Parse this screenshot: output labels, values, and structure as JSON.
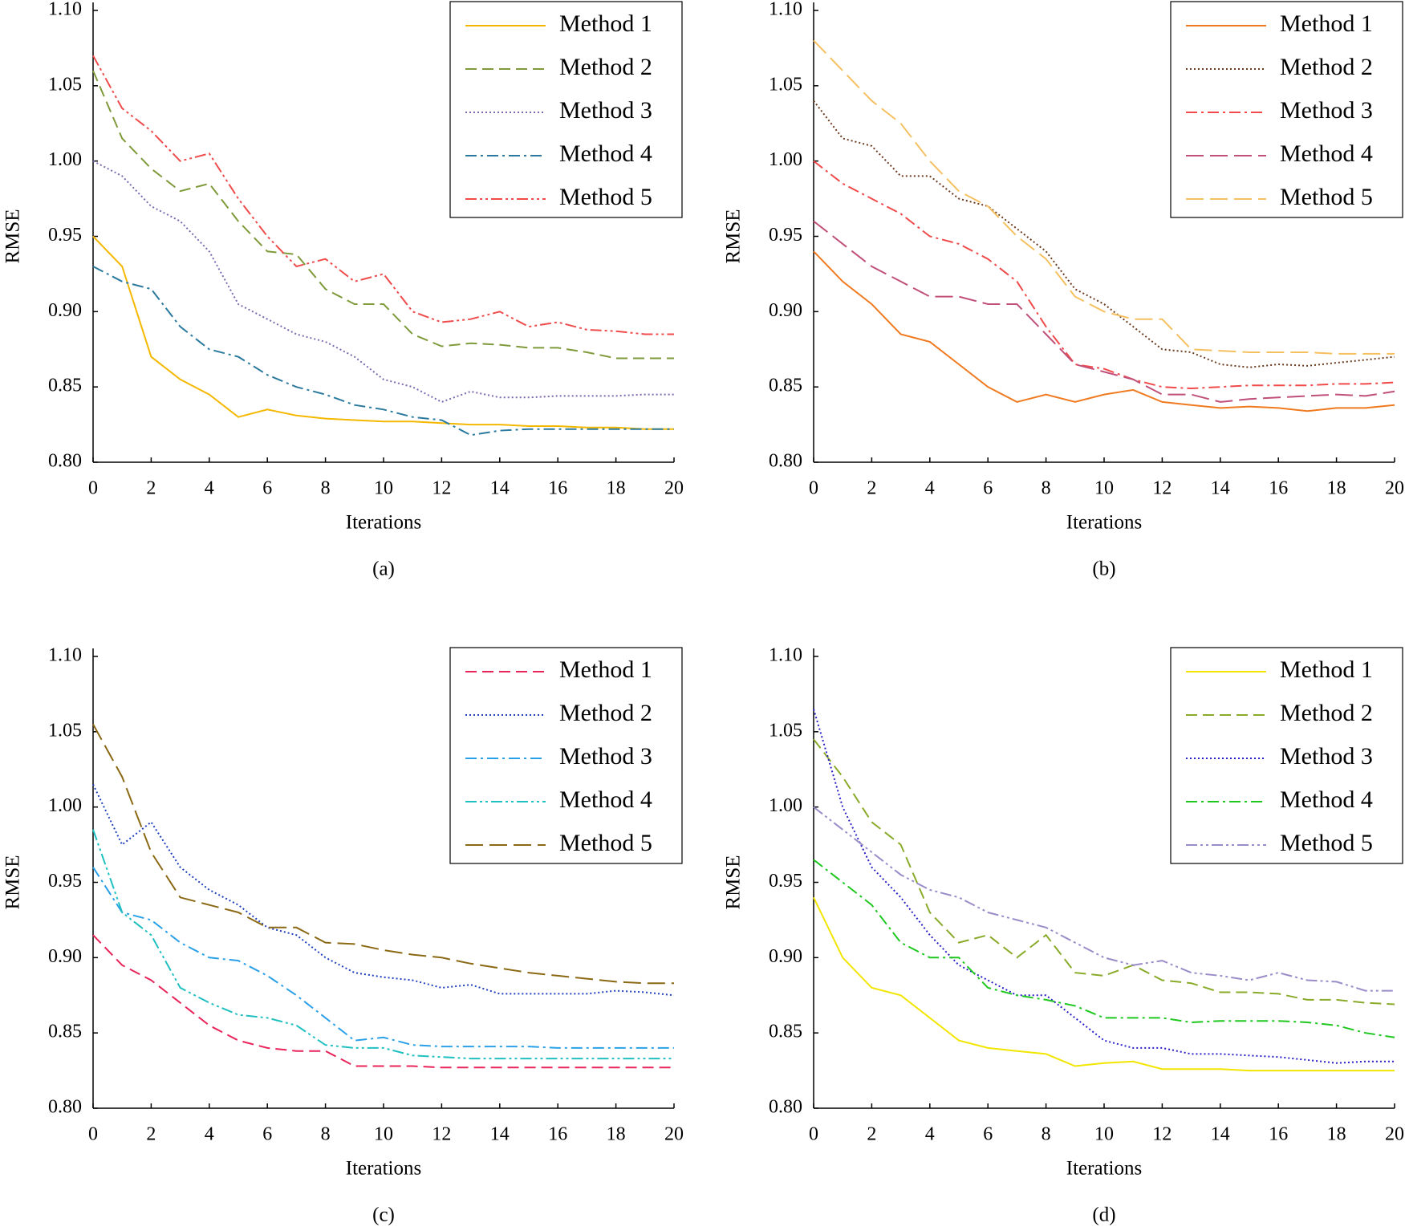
{
  "chart_data": [
    {
      "type": "line",
      "caption": "(a)",
      "xlabel": "Iterations",
      "ylabel": "RMSE",
      "x": [
        0,
        1,
        2,
        3,
        4,
        5,
        6,
        7,
        8,
        9,
        10,
        11,
        12,
        13,
        14,
        15,
        16,
        17,
        18,
        19,
        20
      ],
      "xlim": [
        0,
        20
      ],
      "xticks": [
        0,
        2,
        4,
        6,
        8,
        10,
        12,
        14,
        16,
        18,
        20
      ],
      "ylim": [
        0.8,
        1.1
      ],
      "yticks": [
        {
          "value": 0.8,
          "label": "0.80"
        },
        {
          "value": 0.85,
          "label": "0.85"
        },
        {
          "value": 0.9,
          "label": "0.90"
        },
        {
          "value": 0.95,
          "label": "0.95"
        },
        {
          "value": 1.0,
          "label": "1.00"
        },
        {
          "value": 1.05,
          "label": "1.05"
        },
        {
          "value": 1.1,
          "label": "1.10"
        }
      ],
      "series": [
        {
          "name": "Method 1",
          "color": "#f5b800",
          "dash": "solid",
          "values": [
            0.95,
            0.93,
            0.87,
            0.855,
            0.845,
            0.83,
            0.835,
            0.831,
            0.829,
            0.828,
            0.827,
            0.827,
            0.826,
            0.825,
            0.825,
            0.824,
            0.824,
            0.823,
            0.823,
            0.822,
            0.822
          ]
        },
        {
          "name": "Method 2",
          "color": "#7f9a3a",
          "dash": "dashed",
          "values": [
            1.06,
            1.015,
            0.995,
            0.98,
            0.985,
            0.96,
            0.94,
            0.938,
            0.915,
            0.905,
            0.905,
            0.885,
            0.877,
            0.879,
            0.878,
            0.876,
            0.876,
            0.873,
            0.869,
            0.869,
            0.869
          ]
        },
        {
          "name": "Method 3",
          "color": "#7b68ae",
          "dash": "dotted",
          "values": [
            1.0,
            0.99,
            0.97,
            0.96,
            0.94,
            0.905,
            0.895,
            0.885,
            0.88,
            0.87,
            0.855,
            0.85,
            0.84,
            0.847,
            0.843,
            0.843,
            0.844,
            0.844,
            0.844,
            0.845,
            0.845
          ]
        },
        {
          "name": "Method 4",
          "color": "#2b7a9e",
          "dash": "dashdot",
          "values": [
            0.93,
            0.92,
            0.915,
            0.89,
            0.875,
            0.87,
            0.858,
            0.85,
            0.845,
            0.838,
            0.835,
            0.83,
            0.828,
            0.818,
            0.821,
            0.822,
            0.822,
            0.822,
            0.822,
            0.822,
            0.822
          ]
        },
        {
          "name": "Method 5",
          "color": "#ef4b4b",
          "dash": "dashdotdot",
          "values": [
            1.07,
            1.035,
            1.02,
            1.0,
            1.005,
            0.975,
            0.95,
            0.93,
            0.935,
            0.92,
            0.925,
            0.9,
            0.893,
            0.895,
            0.9,
            0.89,
            0.893,
            0.888,
            0.887,
            0.885,
            0.885
          ]
        }
      ]
    },
    {
      "type": "line",
      "caption": "(b)",
      "xlabel": "Iterations",
      "ylabel": "RMSE",
      "x": [
        0,
        1,
        2,
        3,
        4,
        5,
        6,
        7,
        8,
        9,
        10,
        11,
        12,
        13,
        14,
        15,
        16,
        17,
        18,
        19,
        20
      ],
      "xlim": [
        0,
        20
      ],
      "xticks": [
        0,
        2,
        4,
        6,
        8,
        10,
        12,
        14,
        16,
        18,
        20
      ],
      "ylim": [
        0.8,
        1.1
      ],
      "yticks": [
        {
          "value": 0.8,
          "label": "0.80"
        },
        {
          "value": 0.85,
          "label": "0.85"
        },
        {
          "value": 0.9,
          "label": "0.90"
        },
        {
          "value": 0.95,
          "label": "0.95"
        },
        {
          "value": 1.0,
          "label": "1.00"
        },
        {
          "value": 1.05,
          "label": "1.05"
        },
        {
          "value": 1.1,
          "label": "1.10"
        }
      ],
      "series": [
        {
          "name": "Method 1",
          "color": "#f07a20",
          "dash": "solid",
          "values": [
            0.94,
            0.92,
            0.905,
            0.885,
            0.88,
            0.865,
            0.85,
            0.84,
            0.845,
            0.84,
            0.845,
            0.848,
            0.84,
            0.838,
            0.836,
            0.837,
            0.836,
            0.834,
            0.836,
            0.836,
            0.838
          ]
        },
        {
          "name": "Method 2",
          "color": "#6b3a1e",
          "dash": "dotted",
          "values": [
            1.04,
            1.015,
            1.01,
            0.99,
            0.99,
            0.975,
            0.97,
            0.955,
            0.94,
            0.915,
            0.905,
            0.89,
            0.875,
            0.873,
            0.865,
            0.863,
            0.865,
            0.864,
            0.866,
            0.868,
            0.87
          ]
        },
        {
          "name": "Method 3",
          "color": "#f04a4a",
          "dash": "dashdot",
          "values": [
            1.0,
            0.985,
            0.975,
            0.965,
            0.95,
            0.945,
            0.935,
            0.92,
            0.89,
            0.865,
            0.862,
            0.855,
            0.85,
            0.849,
            0.85,
            0.851,
            0.851,
            0.851,
            0.852,
            0.852,
            0.853
          ]
        },
        {
          "name": "Method 4",
          "color": "#c0507a",
          "dash": "longdash",
          "values": [
            0.96,
            0.945,
            0.93,
            0.92,
            0.91,
            0.91,
            0.905,
            0.905,
            0.885,
            0.865,
            0.86,
            0.855,
            0.845,
            0.845,
            0.84,
            0.842,
            0.843,
            0.844,
            0.845,
            0.844,
            0.847
          ]
        },
        {
          "name": "Method 5",
          "color": "#f5c060",
          "dash": "longdash",
          "values": [
            1.08,
            1.06,
            1.04,
            1.025,
            1.0,
            0.98,
            0.97,
            0.95,
            0.935,
            0.91,
            0.9,
            0.895,
            0.895,
            0.875,
            0.874,
            0.873,
            0.873,
            0.873,
            0.872,
            0.872,
            0.872
          ]
        }
      ]
    },
    {
      "type": "line",
      "caption": "(c)",
      "xlabel": "Iterations",
      "ylabel": "RMSE",
      "x": [
        0,
        1,
        2,
        3,
        4,
        5,
        6,
        7,
        8,
        9,
        10,
        11,
        12,
        13,
        14,
        15,
        16,
        17,
        18,
        19,
        20
      ],
      "xlim": [
        0,
        20
      ],
      "xticks": [
        0,
        2,
        4,
        6,
        8,
        10,
        12,
        14,
        16,
        18,
        20
      ],
      "ylim": [
        0.8,
        1.1
      ],
      "yticks": [
        {
          "value": 0.8,
          "label": "0.80"
        },
        {
          "value": 0.85,
          "label": "0.85"
        },
        {
          "value": 0.9,
          "label": "0.90"
        },
        {
          "value": 0.95,
          "label": "0.95"
        },
        {
          "value": 1.0,
          "label": "1.00"
        },
        {
          "value": 1.05,
          "label": "1.05"
        },
        {
          "value": 1.1,
          "label": "1.10"
        }
      ],
      "series": [
        {
          "name": "Method 1",
          "color": "#e8245a",
          "dash": "dashed",
          "values": [
            0.915,
            0.895,
            0.885,
            0.87,
            0.855,
            0.845,
            0.84,
            0.838,
            0.838,
            0.828,
            0.828,
            0.828,
            0.827,
            0.827,
            0.827,
            0.827,
            0.827,
            0.827,
            0.827,
            0.827,
            0.827
          ]
        },
        {
          "name": "Method 2",
          "color": "#1f3fbf",
          "dash": "dotted",
          "values": [
            1.015,
            0.975,
            0.99,
            0.96,
            0.945,
            0.935,
            0.92,
            0.915,
            0.9,
            0.89,
            0.887,
            0.885,
            0.88,
            0.882,
            0.876,
            0.876,
            0.876,
            0.876,
            0.878,
            0.877,
            0.875
          ]
        },
        {
          "name": "Method 3",
          "color": "#2aa0e8",
          "dash": "dashdot",
          "values": [
            0.96,
            0.93,
            0.925,
            0.91,
            0.9,
            0.898,
            0.888,
            0.875,
            0.86,
            0.845,
            0.847,
            0.842,
            0.841,
            0.841,
            0.841,
            0.841,
            0.84,
            0.84,
            0.84,
            0.84,
            0.84
          ]
        },
        {
          "name": "Method 4",
          "color": "#20c0c0",
          "dash": "dashdotdot",
          "values": [
            0.985,
            0.93,
            0.915,
            0.88,
            0.87,
            0.862,
            0.86,
            0.855,
            0.842,
            0.84,
            0.84,
            0.835,
            0.834,
            0.833,
            0.833,
            0.833,
            0.833,
            0.833,
            0.833,
            0.833,
            0.833
          ]
        },
        {
          "name": "Method 5",
          "color": "#8b6914",
          "dash": "longdash",
          "values": [
            1.055,
            1.02,
            0.97,
            0.94,
            0.935,
            0.93,
            0.92,
            0.92,
            0.91,
            0.909,
            0.905,
            0.902,
            0.9,
            0.896,
            0.893,
            0.89,
            0.888,
            0.886,
            0.884,
            0.883,
            0.883
          ]
        }
      ]
    },
    {
      "type": "line",
      "caption": "(d)",
      "xlabel": "Iterations",
      "ylabel": "RMSE",
      "x": [
        0,
        1,
        2,
        3,
        4,
        5,
        6,
        7,
        8,
        9,
        10,
        11,
        12,
        13,
        14,
        15,
        16,
        17,
        18,
        19,
        20
      ],
      "xlim": [
        0,
        20
      ],
      "xticks": [
        0,
        2,
        4,
        6,
        8,
        10,
        12,
        14,
        16,
        18,
        20
      ],
      "ylim": [
        0.8,
        1.1
      ],
      "yticks": [
        {
          "value": 0.8,
          "label": "0.80"
        },
        {
          "value": 0.85,
          "label": "0.85"
        },
        {
          "value": 0.9,
          "label": "0.90"
        },
        {
          "value": 0.95,
          "label": "0.95"
        },
        {
          "value": 1.0,
          "label": "1.00"
        },
        {
          "value": 1.05,
          "label": "1.05"
        },
        {
          "value": 1.1,
          "label": "1.10"
        }
      ],
      "series": [
        {
          "name": "Method 1",
          "color": "#f2e600",
          "dash": "solid",
          "values": [
            0.94,
            0.9,
            0.88,
            0.875,
            0.86,
            0.845,
            0.84,
            0.838,
            0.836,
            0.828,
            0.83,
            0.831,
            0.826,
            0.826,
            0.826,
            0.825,
            0.825,
            0.825,
            0.825,
            0.825,
            0.825
          ]
        },
        {
          "name": "Method 2",
          "color": "#8aaa2a",
          "dash": "dashed",
          "values": [
            1.045,
            1.02,
            0.99,
            0.975,
            0.93,
            0.91,
            0.915,
            0.9,
            0.915,
            0.89,
            0.888,
            0.895,
            0.885,
            0.883,
            0.877,
            0.877,
            0.876,
            0.872,
            0.872,
            0.87,
            0.869
          ]
        },
        {
          "name": "Method 3",
          "color": "#2a20c8",
          "dash": "dotted",
          "values": [
            1.065,
            1.0,
            0.96,
            0.94,
            0.915,
            0.895,
            0.885,
            0.875,
            0.875,
            0.86,
            0.845,
            0.84,
            0.84,
            0.836,
            0.836,
            0.835,
            0.834,
            0.832,
            0.83,
            0.831,
            0.831
          ]
        },
        {
          "name": "Method 4",
          "color": "#1ec81e",
          "dash": "dashdot",
          "values": [
            0.965,
            0.95,
            0.935,
            0.91,
            0.9,
            0.9,
            0.88,
            0.875,
            0.872,
            0.868,
            0.86,
            0.86,
            0.86,
            0.857,
            0.858,
            0.858,
            0.858,
            0.857,
            0.855,
            0.85,
            0.847
          ]
        },
        {
          "name": "Method 5",
          "color": "#9a8cc8",
          "dash": "dashdotdot",
          "values": [
            1.0,
            0.985,
            0.97,
            0.955,
            0.945,
            0.94,
            0.93,
            0.925,
            0.92,
            0.91,
            0.9,
            0.895,
            0.898,
            0.89,
            0.888,
            0.885,
            0.89,
            0.885,
            0.884,
            0.878,
            0.878
          ]
        }
      ]
    }
  ]
}
